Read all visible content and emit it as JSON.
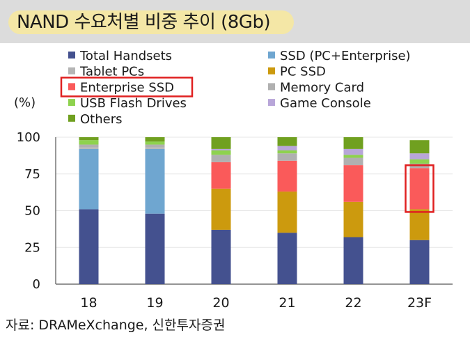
{
  "header": {
    "title": "NAND 수요처별 비중 추이 (8Gb)"
  },
  "chart_data": {
    "type": "bar",
    "stacked": true,
    "ylabel": "(%)",
    "ylim": [
      0,
      100
    ],
    "yticks": [
      0,
      25,
      50,
      75,
      100
    ],
    "categories": [
      "18",
      "19",
      "20",
      "21",
      "22",
      "23F"
    ],
    "legend_position": "top",
    "series": [
      {
        "name": "Total Handsets",
        "color": "#44518f",
        "values": [
          51,
          48,
          37,
          35,
          32,
          30
        ]
      },
      {
        "name": "SSD (PC+Enterprise)",
        "color": "#6fa6d0",
        "values": [
          41,
          44,
          0,
          0,
          0,
          0
        ]
      },
      {
        "name": "Tablet PCs",
        "color": "#b5b5b5",
        "values": [
          1,
          1,
          0,
          0,
          0,
          0
        ]
      },
      {
        "name": "PC SSD",
        "color": "#cc9a0e",
        "values": [
          0,
          0,
          28,
          28,
          24,
          21
        ]
      },
      {
        "name": "Enterprise SSD",
        "color": "#fa5a5a",
        "values": [
          0,
          0,
          18,
          21,
          25,
          28
        ]
      },
      {
        "name": "Memory Card",
        "color": "#b0b0b0",
        "values": [
          2,
          2,
          5,
          5,
          5,
          3
        ]
      },
      {
        "name": "USB Flash Drives",
        "color": "#8ed24e",
        "values": [
          3,
          2,
          3,
          2,
          2,
          3
        ]
      },
      {
        "name": "Game Console",
        "color": "#b8a6d9",
        "values": [
          0,
          0,
          1,
          3,
          4,
          4
        ]
      },
      {
        "name": "Others",
        "color": "#70a020",
        "values": [
          2,
          3,
          8,
          6,
          8,
          9
        ]
      }
    ],
    "highlights": {
      "legend_entry": "Enterprise SSD",
      "category": "23F",
      "series": "Enterprise SSD",
      "color": "#e02020"
    }
  },
  "footer": {
    "source": "자료: DRAMeXchange, 신한투자증권"
  }
}
